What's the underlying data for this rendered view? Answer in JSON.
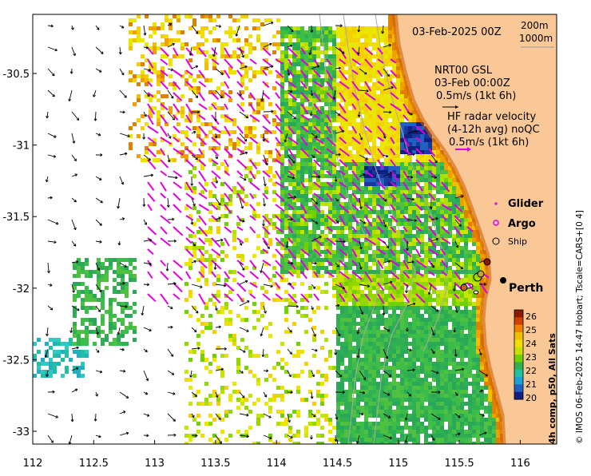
{
  "map": {
    "date_label": "03-Feb-2025 00Z",
    "depth_contours": [
      "200m",
      "1000m"
    ],
    "model_label": "NRT00 GSL",
    "model_time": "03-Feb 00:00Z",
    "model_scale": "0.5m/s (1kt 6h)",
    "hf_title": "HF radar velocity",
    "hf_avg": "(4-12h avg) noQC",
    "hf_scale": "0.5m/s (1kt 6h)",
    "legend": [
      {
        "label": "Glider",
        "symbol": "dot",
        "color": "#e000e0"
      },
      {
        "label": "Argo",
        "symbol": "circle",
        "color": "#e000e0"
      },
      {
        "label": "Ship",
        "symbol": "circle",
        "color": "#000000"
      }
    ],
    "city_label": "Perth",
    "credit": "© IMOS 06-Feb-2025 14:47 Hobart; Tscale=CARS+[0 4]",
    "colorbar_label": "4h comp, p50, All Sats",
    "colorbar_ticks": [
      "26",
      "25",
      "24",
      "23",
      "22",
      "21",
      "20"
    ],
    "colorbar_colors": [
      "#8b1a00",
      "#d04000",
      "#f08000",
      "#f0c000",
      "#f0e000",
      "#c8e000",
      "#70d000",
      "#30b050",
      "#20c0a0",
      "#20a0d0",
      "#2060c0",
      "#102080"
    ],
    "x_ticks": [
      "112",
      "112.5",
      "113",
      "113.5",
      "114",
      "114.5",
      "115",
      "115.5",
      "116"
    ],
    "y_ticks": [
      "-30.5",
      "-31",
      "-31.5",
      "-32",
      "-32.5",
      "-33"
    ],
    "land_color": "#f9c896"
  }
}
